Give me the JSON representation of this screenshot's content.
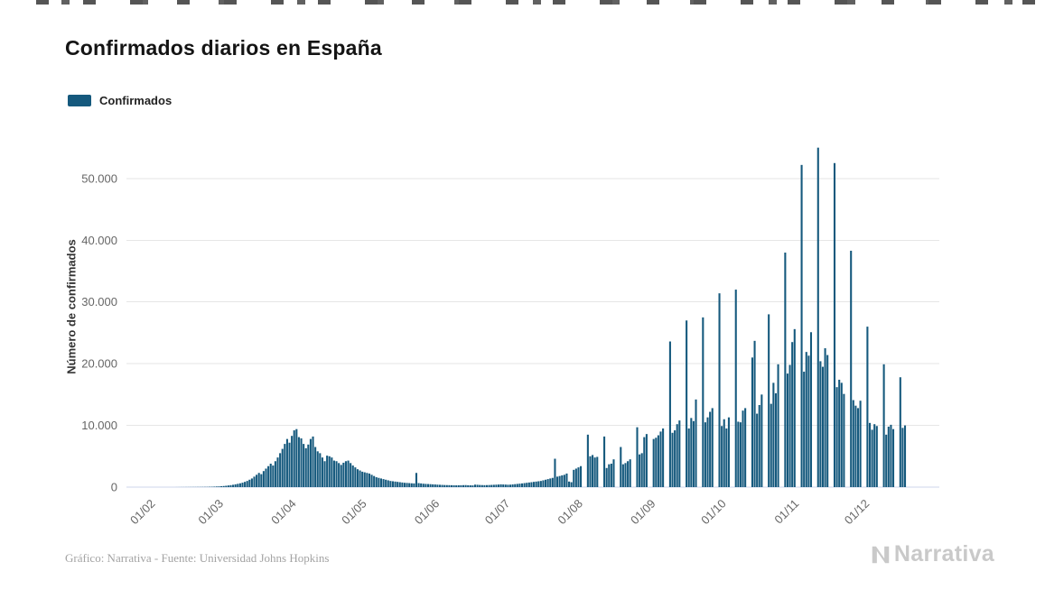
{
  "page": {
    "background": "#ffffff"
  },
  "header": {
    "title": "Confirmados diarios en España"
  },
  "legend": {
    "items": [
      {
        "label": "Confirmados",
        "color": "#15597d"
      }
    ]
  },
  "chart_data": {
    "type": "bar",
    "title": "Confirmados diarios en España",
    "xlabel": "",
    "ylabel": "Número de confirmados",
    "grid": true,
    "grid_color": "#e6e6e6",
    "legend_position": "top-left",
    "ylim": [
      0,
      57000
    ],
    "yticks": [
      {
        "value": 0,
        "label": "0"
      },
      {
        "value": 10000,
        "label": "10.000"
      },
      {
        "value": 20000,
        "label": "20.000"
      },
      {
        "value": 30000,
        "label": "30.000"
      },
      {
        "value": 40000,
        "label": "40.000"
      },
      {
        "value": 50000,
        "label": "50.000"
      }
    ],
    "xticks": [
      {
        "label": "01/02",
        "day_index": 12
      },
      {
        "label": "01/03",
        "day_index": 41
      },
      {
        "label": "01/04",
        "day_index": 72
      },
      {
        "label": "01/05",
        "day_index": 102
      },
      {
        "label": "01/06",
        "day_index": 133
      },
      {
        "label": "01/07",
        "day_index": 163
      },
      {
        "label": "01/08",
        "day_index": 194
      },
      {
        "label": "01/09",
        "day_index": 225
      },
      {
        "label": "01/10",
        "day_index": 255
      },
      {
        "label": "01/11",
        "day_index": 286
      },
      {
        "label": "01/12",
        "day_index": 316
      }
    ],
    "right_padding_days": 14,
    "series": [
      {
        "name": "Confirmados",
        "color": "#15597d",
        "start_date": "2020-01-20",
        "values": [
          0,
          0,
          0,
          0,
          0,
          0,
          0,
          0,
          0,
          0,
          0,
          0,
          0,
          0,
          0,
          0,
          0,
          0,
          0,
          0,
          0,
          5,
          8,
          10,
          12,
          15,
          18,
          20,
          22,
          25,
          28,
          30,
          35,
          40,
          45,
          55,
          65,
          80,
          100,
          120,
          150,
          180,
          220,
          270,
          320,
          380,
          450,
          530,
          620,
          720,
          850,
          1000,
          1200,
          1400,
          1700,
          2000,
          2300,
          2100,
          2600,
          3000,
          3400,
          3800,
          3500,
          4200,
          4800,
          5500,
          6200,
          7000,
          7800,
          7200,
          8300,
          9200,
          9400,
          8100,
          7900,
          7000,
          6300,
          6900,
          7800,
          8200,
          6500,
          5800,
          5500,
          4800,
          4200,
          5100,
          5000,
          4800,
          4300,
          4200,
          3900,
          3600,
          3950,
          4200,
          4300,
          3900,
          3500,
          3200,
          2900,
          2700,
          2500,
          2400,
          2300,
          2200,
          2000,
          1800,
          1600,
          1500,
          1400,
          1300,
          1200,
          1100,
          1000,
          950,
          900,
          850,
          800,
          750,
          700,
          680,
          650,
          620,
          600,
          2300,
          650,
          600,
          550,
          520,
          500,
          480,
          450,
          430,
          400,
          380,
          360,
          340,
          330,
          320,
          310,
          300,
          290,
          300,
          310,
          320,
          330,
          300,
          290,
          280,
          400,
          380,
          350,
          330,
          320,
          330,
          340,
          360,
          380,
          400,
          420,
          450,
          430,
          410,
          390,
          400,
          440,
          480,
          520,
          560,
          600,
          650,
          700,
          750,
          800,
          850,
          900,
          950,
          1000,
          1100,
          1200,
          1300,
          1400,
          1500,
          4600,
          1700,
          1800,
          1900,
          2000,
          2200,
          900,
          800,
          2800,
          3000,
          3200,
          3400,
          0,
          0,
          8500,
          5000,
          5200,
          4800,
          4900,
          0,
          0,
          8200,
          3100,
          3700,
          3800,
          4500,
          0,
          0,
          6500,
          3700,
          3900,
          4200,
          4500,
          0,
          0,
          9700,
          5300,
          5500,
          8100,
          8600,
          0,
          0,
          7800,
          8000,
          8400,
          9000,
          9500,
          0,
          0,
          23600,
          8800,
          9200,
          10200,
          10800,
          0,
          0,
          27000,
          9500,
          11200,
          10700,
          14200,
          0,
          0,
          27500,
          10500,
          11300,
          12200,
          12800,
          0,
          0,
          31400,
          9900,
          11000,
          9500,
          11300,
          0,
          0,
          32000,
          10600,
          10500,
          12400,
          12800,
          0,
          0,
          21000,
          23700,
          11900,
          13300,
          15000,
          0,
          0,
          28000,
          13500,
          16900,
          15200,
          19900,
          0,
          0,
          38000,
          18400,
          19800,
          23500,
          25600,
          0,
          0,
          52200,
          18700,
          21900,
          21300,
          25100,
          0,
          0,
          55000,
          20400,
          19500,
          22500,
          21400,
          0,
          0,
          52500,
          16200,
          17400,
          16900,
          15100,
          0,
          0,
          38300,
          14100,
          13200,
          12800,
          14000,
          0,
          0,
          26000,
          10400,
          9300,
          10200,
          9900,
          0,
          0,
          19900,
          8500,
          9800,
          10100,
          9400,
          0,
          0,
          17800,
          9600,
          10000
        ]
      }
    ]
  },
  "footer": {
    "credits": "Gráfico: Narrativa - Fuente: Universidad Johns Hopkins"
  },
  "logo": {
    "text": "Narrativa"
  }
}
